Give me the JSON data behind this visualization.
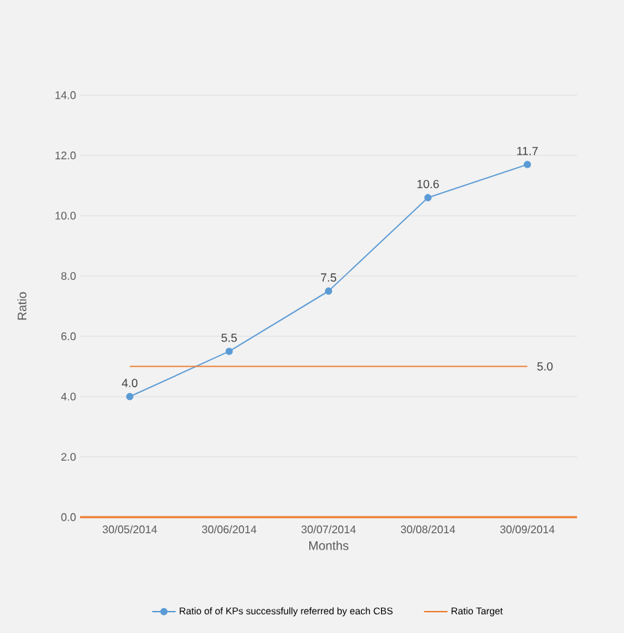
{
  "chart_data": {
    "type": "line",
    "xlabel": "Months",
    "ylabel": "Ratio",
    "categories": [
      "30/05/2014",
      "30/06/2014",
      "30/07/2014",
      "30/08/2014",
      "30/09/2014"
    ],
    "series": [
      {
        "name": "Ratio of of KPs successfully referred by each CBS",
        "color": "#5b9bd5",
        "marker": "circle",
        "values": [
          4.0,
          5.5,
          7.5,
          10.6,
          11.7
        ],
        "value_labels": [
          "4.0",
          "5.5",
          "7.5",
          "10.6",
          "11.7"
        ]
      },
      {
        "name": "Ratio Target",
        "color": "#ed7d31",
        "marker": "none",
        "values": [
          5.0,
          5.0,
          5.0,
          5.0,
          5.0
        ],
        "value_labels": [
          null,
          null,
          null,
          null,
          "5.0"
        ]
      }
    ],
    "ylim": [
      0,
      14
    ],
    "yticks": [
      {
        "value": 0,
        "label": "0.0"
      },
      {
        "value": 2,
        "label": "2.0"
      },
      {
        "value": 4,
        "label": "4.0"
      },
      {
        "value": 6,
        "label": "6.0"
      },
      {
        "value": 8,
        "label": "8.0"
      },
      {
        "value": 10,
        "label": "10.0"
      },
      {
        "value": 12,
        "label": "12.0"
      },
      {
        "value": 14,
        "label": "14.0"
      }
    ],
    "grid": "y",
    "legend": "bottom"
  }
}
